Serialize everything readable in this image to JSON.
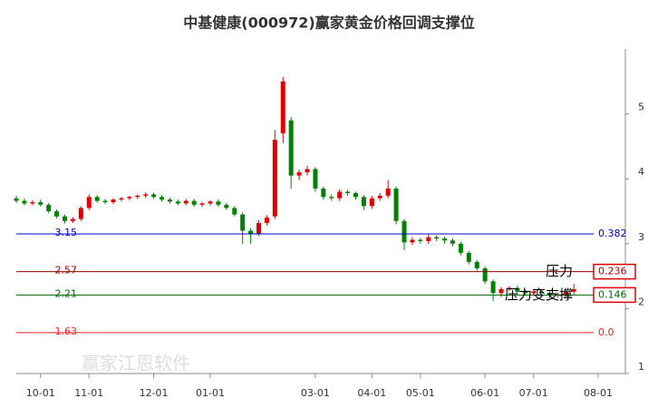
{
  "chart_data": {
    "type": "candlestick",
    "title": "中基健康(000972)赢家黄金价格回调支撑位",
    "watermark": "赢家江恩软件",
    "categories": [
      null,
      null,
      null,
      "10-01",
      null,
      null,
      null,
      null,
      null,
      "11-01",
      null,
      null,
      null,
      null,
      null,
      null,
      null,
      "12-01",
      null,
      null,
      null,
      null,
      null,
      null,
      "01-01",
      null,
      null,
      null,
      null,
      null,
      null,
      null,
      null,
      null,
      null,
      null,
      null,
      "03-01",
      null,
      null,
      null,
      null,
      null,
      null,
      "04-01",
      null,
      null,
      null,
      null,
      null,
      "05-01",
      null,
      null,
      null,
      null,
      null,
      null,
      null,
      "06-01",
      null,
      null,
      null,
      null,
      null,
      "07-01",
      null,
      null,
      null,
      null,
      null,
      null,
      null,
      "08-01"
    ],
    "open": [
      3.7,
      3.66,
      3.62,
      3.64,
      3.6,
      3.5,
      3.42,
      3.35,
      3.38,
      3.55,
      3.72,
      3.66,
      3.64,
      3.68,
      3.7,
      3.72,
      3.74,
      3.76,
      3.72,
      3.68,
      3.65,
      3.62,
      3.66,
      3.6,
      3.62,
      3.65,
      3.6,
      3.55,
      3.45,
      3.2,
      3.15,
      3.32,
      3.42,
      4.7,
      4.9,
      4.05,
      4.1,
      4.15,
      3.85,
      3.72,
      3.7,
      3.8,
      3.78,
      3.72,
      3.58,
      3.7,
      3.74,
      3.85,
      3.35,
      3.02,
      3.06,
      3.04,
      3.1,
      3.08,
      3.05,
      3.0,
      2.86,
      2.72,
      2.62,
      2.42,
      2.24,
      2.3,
      2.32,
      2.26,
      2.24,
      2.26,
      2.24,
      2.2,
      2.22,
      2.26,
      null,
      null,
      null
    ],
    "high": [
      3.74,
      3.7,
      3.67,
      3.68,
      3.63,
      3.53,
      3.45,
      3.41,
      3.58,
      3.76,
      3.75,
      3.69,
      3.7,
      3.72,
      3.74,
      3.76,
      3.79,
      3.79,
      3.75,
      3.71,
      3.68,
      3.69,
      3.69,
      3.64,
      3.67,
      3.68,
      3.63,
      3.58,
      3.48,
      3.24,
      3.36,
      3.44,
      4.75,
      5.57,
      4.95,
      4.14,
      4.2,
      4.18,
      3.88,
      3.76,
      3.84,
      3.83,
      3.8,
      3.75,
      3.74,
      3.78,
      3.98,
      3.88,
      3.38,
      3.1,
      3.09,
      3.14,
      3.13,
      3.11,
      3.08,
      3.03,
      2.89,
      2.75,
      2.65,
      2.45,
      2.33,
      2.35,
      2.35,
      2.29,
      2.29,
      2.29,
      2.27,
      2.25,
      2.29,
      2.38,
      null,
      null,
      null
    ],
    "low": [
      3.63,
      3.59,
      3.59,
      3.57,
      3.47,
      3.39,
      3.31,
      3.32,
      3.35,
      3.52,
      3.63,
      3.61,
      3.61,
      3.65,
      3.67,
      3.69,
      3.71,
      3.69,
      3.65,
      3.62,
      3.59,
      3.59,
      3.57,
      3.57,
      3.59,
      3.57,
      3.52,
      3.42,
      3.0,
      3.0,
      3.12,
      3.28,
      3.38,
      4.55,
      3.85,
      3.98,
      4.05,
      3.8,
      3.68,
      3.66,
      3.66,
      3.74,
      3.68,
      3.52,
      3.54,
      3.66,
      3.7,
      3.3,
      2.9,
      2.98,
      3.0,
      3.0,
      3.04,
      3.0,
      2.96,
      2.82,
      2.68,
      2.58,
      2.38,
      2.12,
      2.18,
      2.27,
      2.22,
      2.2,
      2.21,
      2.2,
      2.16,
      2.17,
      2.19,
      2.22,
      null,
      null,
      null
    ],
    "close": [
      3.66,
      3.62,
      3.64,
      3.6,
      3.5,
      3.42,
      3.35,
      3.38,
      3.55,
      3.72,
      3.66,
      3.64,
      3.68,
      3.7,
      3.72,
      3.74,
      3.76,
      3.72,
      3.68,
      3.65,
      3.62,
      3.66,
      3.6,
      3.62,
      3.65,
      3.6,
      3.55,
      3.45,
      3.2,
      3.15,
      3.32,
      3.4,
      4.6,
      5.5,
      4.05,
      4.1,
      4.15,
      3.85,
      3.72,
      3.7,
      3.8,
      3.78,
      3.72,
      3.58,
      3.7,
      3.74,
      3.85,
      3.35,
      3.02,
      3.06,
      3.04,
      3.1,
      3.08,
      3.05,
      3.0,
      2.86,
      2.72,
      2.62,
      2.42,
      2.24,
      2.3,
      2.32,
      2.26,
      2.24,
      2.26,
      2.24,
      2.2,
      2.22,
      2.26,
      2.3,
      null,
      null,
      null
    ],
    "up_color": "#e00000",
    "down_color": "#008000",
    "ylim": [
      1,
      6
    ],
    "yticks": [
      1,
      2,
      3,
      4,
      5
    ],
    "levels": [
      {
        "value": 3.15,
        "ratio": 0.382,
        "color": "#0000cc"
      },
      {
        "value": 2.57,
        "ratio": 0.236,
        "color": "#990000",
        "boxed": true
      },
      {
        "value": 2.21,
        "ratio": 0.146,
        "color": "#006600",
        "boxed": true
      },
      {
        "value": 1.63,
        "ratio": {
          "value": 0,
          "label": "0.0"
        },
        "color": "#ee2222"
      }
    ],
    "annotations": [
      {
        "text": "压力",
        "level": 1
      },
      {
        "text": "压力变支撑",
        "level": 2
      }
    ]
  }
}
